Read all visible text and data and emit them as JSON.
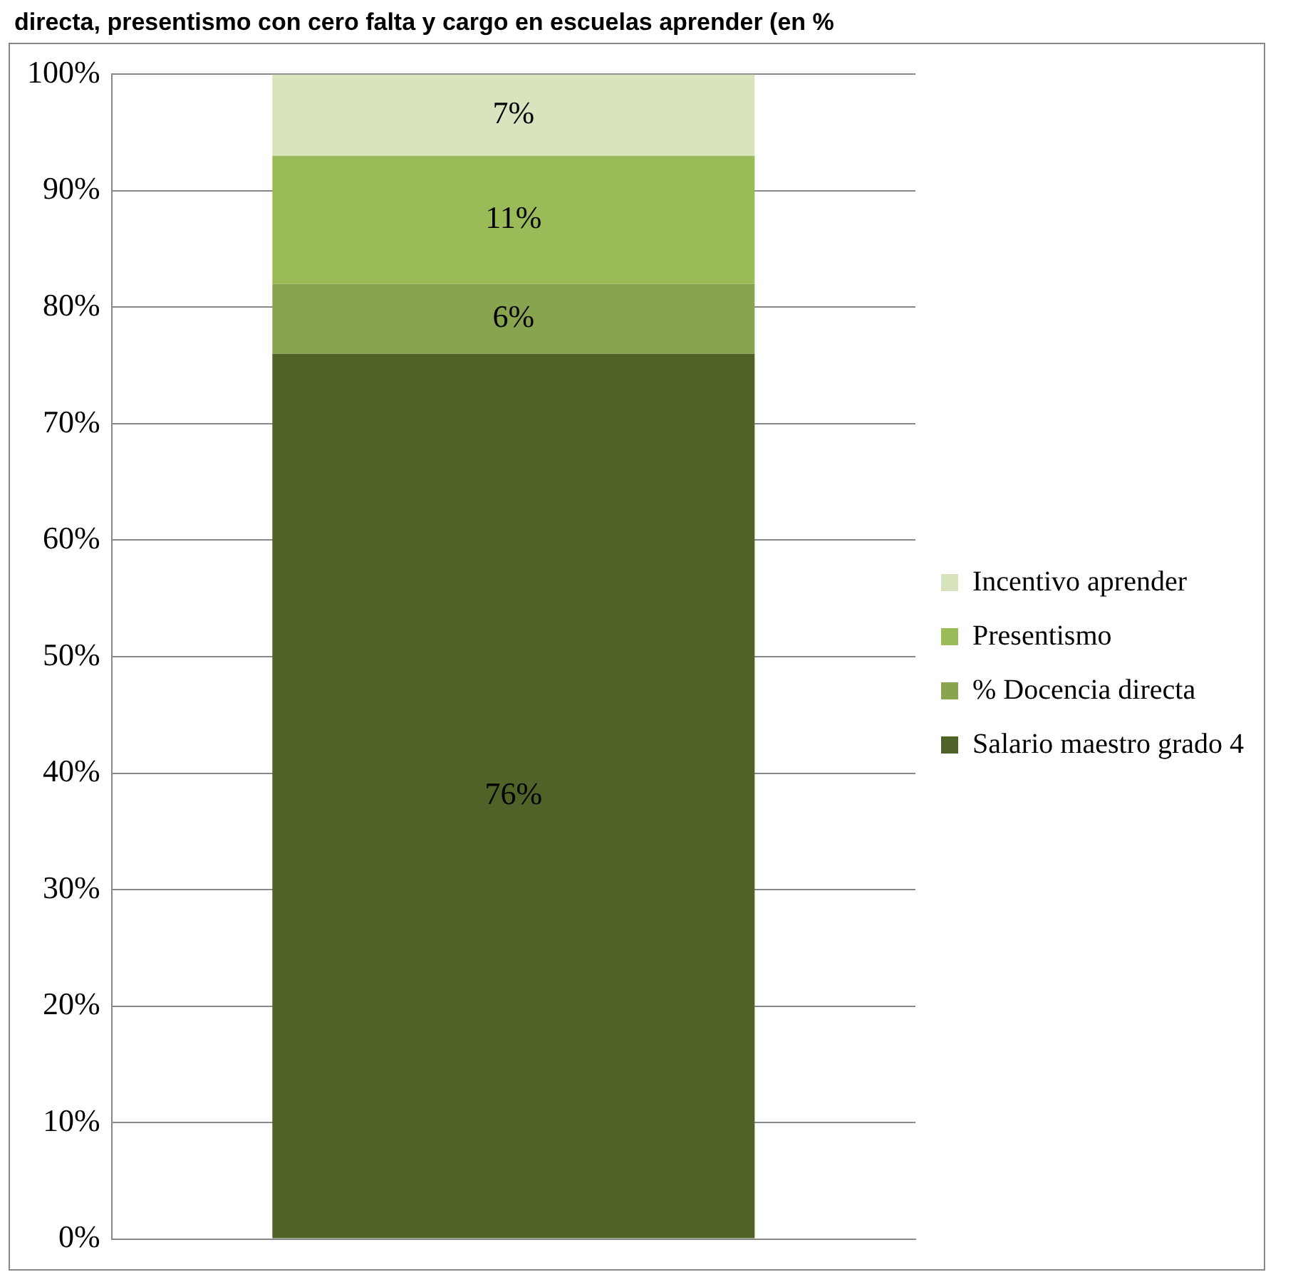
{
  "chart_data": {
    "type": "bar",
    "stacked": true,
    "title": "directa, presentismo con cero falta y cargo en escuelas aprender (en %",
    "categories": [
      null
    ],
    "series": [
      {
        "name": "Salario maestro grado 4",
        "color": "#4f6228",
        "values": [
          76
        ],
        "value_labels": [
          "76%"
        ]
      },
      {
        "name": "% Docencia directa",
        "color": "#88a44e",
        "values": [
          6
        ],
        "value_labels": [
          "6%"
        ]
      },
      {
        "name": "Presentismo",
        "color": "#9bbb59",
        "values": [
          11
        ],
        "value_labels": [
          "11%"
        ]
      },
      {
        "name": "Incentivo aprender",
        "color": "#d7e4bd",
        "values": [
          7
        ],
        "value_labels": [
          "7%"
        ]
      }
    ],
    "ylim": [
      0,
      100
    ],
    "yticks": [
      {
        "value": 0,
        "label": "0%"
      },
      {
        "value": 10,
        "label": "10%"
      },
      {
        "value": 20,
        "label": "20%"
      },
      {
        "value": 30,
        "label": "30%"
      },
      {
        "value": 40,
        "label": "40%"
      },
      {
        "value": 50,
        "label": "50%"
      },
      {
        "value": 60,
        "label": "60%"
      },
      {
        "value": 70,
        "label": "70%"
      },
      {
        "value": 80,
        "label": "80%"
      },
      {
        "value": 90,
        "label": "90%"
      },
      {
        "value": 100,
        "label": "100%"
      }
    ],
    "grid": "y",
    "legend": "right"
  }
}
